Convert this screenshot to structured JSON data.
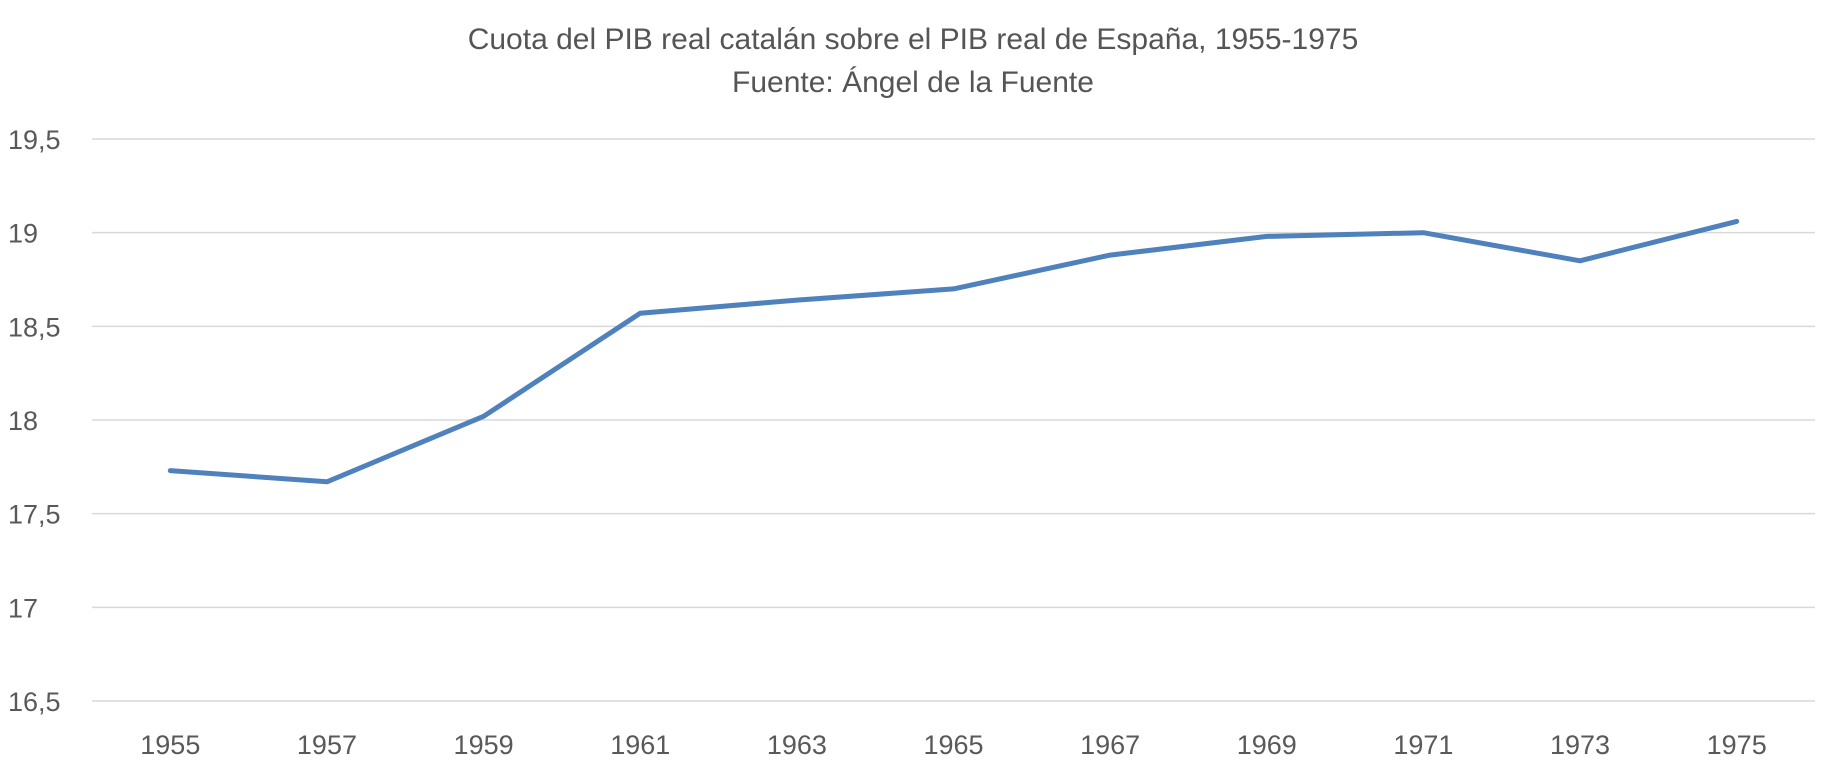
{
  "chart_data": {
    "type": "line",
    "title": "Cuota del PIB real catalán sobre el PIB real de España, 1955-1975",
    "subtitle": "Fuente: Ángel de la Fuente",
    "xlabel": "",
    "ylabel": "",
    "x_ticks": [
      "1955",
      "1957",
      "1959",
      "1961",
      "1963",
      "1965",
      "1967",
      "1969",
      "1971",
      "1973",
      "1975"
    ],
    "y_ticks": [
      "16,5",
      "17",
      "17,5",
      "18",
      "18,5",
      "19",
      "19,5"
    ],
    "ylim": [
      16.5,
      19.5
    ],
    "grid": true,
    "legend": "none",
    "colors": {
      "series": "#4f81bd",
      "grid": "#d9d9d9",
      "text": "#595959"
    },
    "series": [
      {
        "x": [
          1955,
          1957,
          1959,
          1961,
          1963,
          1965,
          1967,
          1969,
          1971,
          1973,
          1975
        ],
        "values": [
          17.73,
          17.67,
          18.02,
          18.57,
          18.64,
          18.7,
          18.88,
          18.98,
          19.0,
          18.85,
          19.06
        ]
      }
    ]
  }
}
